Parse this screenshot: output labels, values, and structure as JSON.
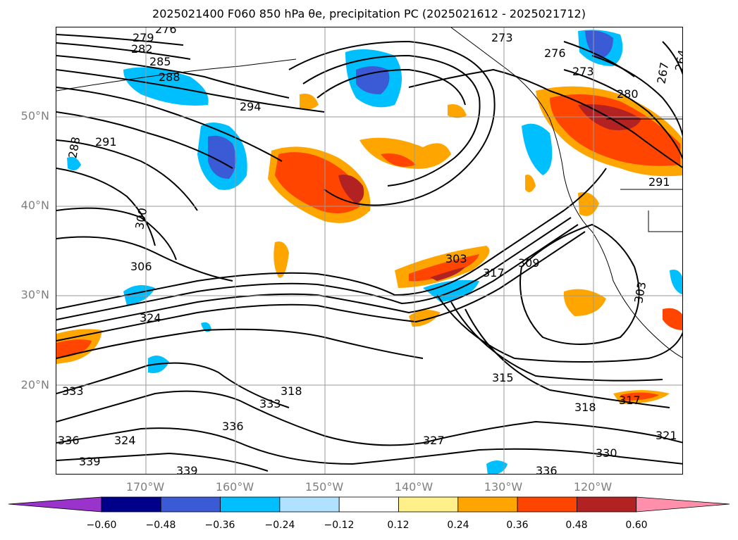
{
  "title": "2025021400 F060 850 hPa θe, precipitation PC (2025021612 - 2025021712)",
  "latitude_labels": [
    "50°N",
    "40°N",
    "30°N",
    "20°N"
  ],
  "longitude_labels": [
    "170°W",
    "160°W",
    "150°W",
    "140°W",
    "130°W",
    "120°W"
  ],
  "colorbar": {
    "ticks": [
      "−0.60",
      "−0.48",
      "−0.36",
      "−0.24",
      "−0.12",
      "0.12",
      "0.24",
      "0.36",
      "0.48",
      "0.60"
    ],
    "colors": [
      "#9933cc",
      "#00008b",
      "#3b5bd6",
      "#00bfff",
      "#b0e2ff",
      "#ffffff",
      "#fff08a",
      "#ffa500",
      "#ff4500",
      "#b22222",
      "#ff8fab"
    ]
  },
  "contour_labels": [
    "279",
    "276",
    "282",
    "285",
    "288",
    "291",
    "294",
    "288",
    "300",
    "306",
    "324",
    "303",
    "317",
    "309",
    "303",
    "315",
    "318",
    "317",
    "321",
    "330",
    "336",
    "333",
    "318",
    "333",
    "336",
    "336",
    "339",
    "339",
    "324",
    "327",
    "273",
    "276",
    "273",
    "280",
    "267",
    "264",
    "291"
  ],
  "colors": {
    "ocean": "#ffffff",
    "grid": "#9a9a9a",
    "contour": "#000000",
    "axis_label": "#7f7f7f"
  }
}
